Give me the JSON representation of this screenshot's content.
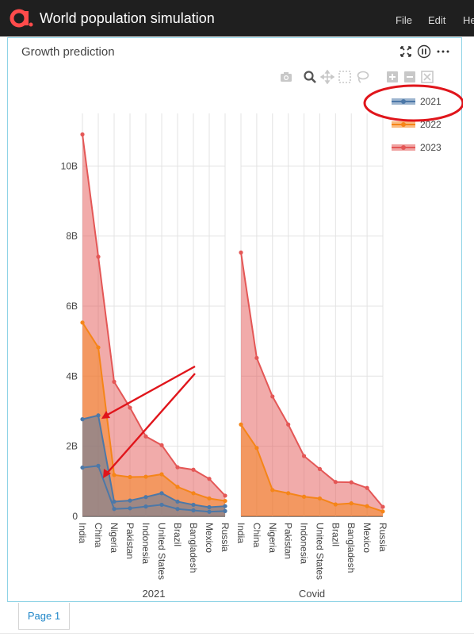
{
  "app": {
    "title": "World population simulation",
    "menu": [
      "File",
      "Edit",
      "He"
    ]
  },
  "panel": {
    "title": "Growth prediction",
    "icons": [
      "expand-icon",
      "pause-icon",
      "more-icon"
    ]
  },
  "modebar": [
    "camera-icon",
    "zoom-icon",
    "pan-icon",
    "box-select-icon",
    "lasso-icon",
    "zoom-in-icon",
    "zoom-out-icon",
    "autoscale-icon"
  ],
  "chart_data": {
    "type": "area",
    "stacked": true,
    "categories": [
      "India",
      "China",
      "Nigeria",
      "Pakistan",
      "Indonesia",
      "United States",
      "Brazil",
      "Bangladesh",
      "Mexico",
      "Russia"
    ],
    "yaxis": {
      "ticks": [
        "0",
        "2B",
        "4B",
        "6B",
        "8B",
        "10B"
      ],
      "tick_values": [
        0,
        2,
        4,
        6,
        8,
        10
      ],
      "range": [
        0,
        11.5
      ]
    },
    "legend": {
      "placement": "top-right",
      "entries": [
        "2021",
        "2022",
        "2023"
      ]
    },
    "colors": {
      "2021": "#4c78a8",
      "2022": "#f58518",
      "2023": "#e45756"
    },
    "panels": [
      {
        "title": "2021",
        "series": [
          {
            "name": "2021",
            "values": [
              1.39,
              1.44,
              0.21,
              0.23,
              0.28,
              0.33,
              0.21,
              0.17,
              0.13,
              0.15
            ],
            "values_upper": [
              2.77,
              2.88,
              0.42,
              0.45,
              0.55,
              0.66,
              0.42,
              0.33,
              0.26,
              0.29
            ]
          },
          {
            "name": "2022",
            "values": [
              5.53,
              4.82,
              1.18,
              1.12,
              1.13,
              1.2,
              0.84,
              0.66,
              0.51,
              0.44
            ]
          },
          {
            "name": "2023",
            "values": [
              10.9,
              7.41,
              3.84,
              3.1,
              2.28,
              2.03,
              1.4,
              1.33,
              1.07,
              0.59
            ]
          }
        ]
      },
      {
        "title": "Covid",
        "series": [
          {
            "name": "2022",
            "values": [
              2.62,
              1.95,
              0.75,
              0.66,
              0.56,
              0.51,
              0.34,
              0.37,
              0.29,
              0.14
            ]
          },
          {
            "name": "2023",
            "values": [
              7.53,
              4.52,
              3.42,
              2.62,
              1.72,
              1.35,
              0.98,
              0.97,
              0.81,
              0.27
            ]
          }
        ]
      }
    ]
  },
  "pages": [
    {
      "label": "Page 1"
    }
  ]
}
